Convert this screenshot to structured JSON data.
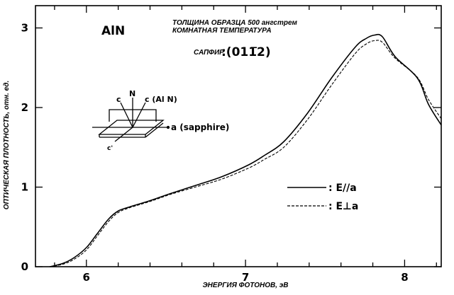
{
  "chart_data": {
    "type": "line",
    "title": "AlN",
    "annotations": [
      "ТОЛЩИНА ОБРАЗЦА 500 ангстрем",
      "КОМНАТНАЯ ТЕМПЕРАТУРА",
      "САПФИР",
      ":(01Ġ12)"
    ],
    "substrate_label": "САПФИР",
    "substrate_plane": ":(011̅2)",
    "inset": {
      "labels": [
        "c",
        "N",
        "c (Al N)",
        "a (sapphire)",
        "c'"
      ]
    },
    "xlabel": "ЭНЕРГИЯ ФОТОНОВ, эВ",
    "ylabel": "ОПТИЧЕСКАЯ ПЛОТНОСТЬ, отн. ед.",
    "xlim": [
      5.68,
      8.23
    ],
    "ylim": [
      0,
      3.28
    ],
    "xticks": [
      6,
      7,
      8
    ],
    "yticks": [
      0,
      1,
      2,
      3
    ],
    "grid": false,
    "legend_placement": "right",
    "series": [
      {
        "name": ": E//a",
        "style": "solid",
        "x": [
          5.77,
          5.85,
          5.92,
          6.0,
          6.07,
          6.14,
          6.2,
          6.27,
          6.4,
          6.53,
          6.7,
          6.85,
          7.02,
          7.12,
          7.24,
          7.39,
          7.54,
          7.69,
          7.76,
          7.81,
          7.86,
          7.94,
          8.08,
          8.15,
          8.23
        ],
        "y": [
          0.0,
          0.04,
          0.11,
          0.24,
          0.42,
          0.6,
          0.7,
          0.75,
          0.83,
          0.92,
          1.03,
          1.13,
          1.28,
          1.4,
          1.57,
          1.93,
          2.37,
          2.76,
          2.87,
          2.91,
          2.89,
          2.64,
          2.37,
          2.04,
          1.78
        ]
      },
      {
        "name": ": E⊥a",
        "style": "dashed",
        "x": [
          5.77,
          5.85,
          5.92,
          6.0,
          6.07,
          6.14,
          6.2,
          6.27,
          6.4,
          6.53,
          6.7,
          6.85,
          7.02,
          7.12,
          7.24,
          7.39,
          7.54,
          7.69,
          7.76,
          7.81,
          7.86,
          7.94,
          8.08,
          8.15,
          8.23
        ],
        "y": [
          0.0,
          0.03,
          0.09,
          0.21,
          0.39,
          0.57,
          0.68,
          0.74,
          0.82,
          0.91,
          1.01,
          1.1,
          1.24,
          1.35,
          1.5,
          1.85,
          2.28,
          2.68,
          2.8,
          2.84,
          2.82,
          2.62,
          2.38,
          2.1,
          1.86
        ]
      }
    ]
  }
}
